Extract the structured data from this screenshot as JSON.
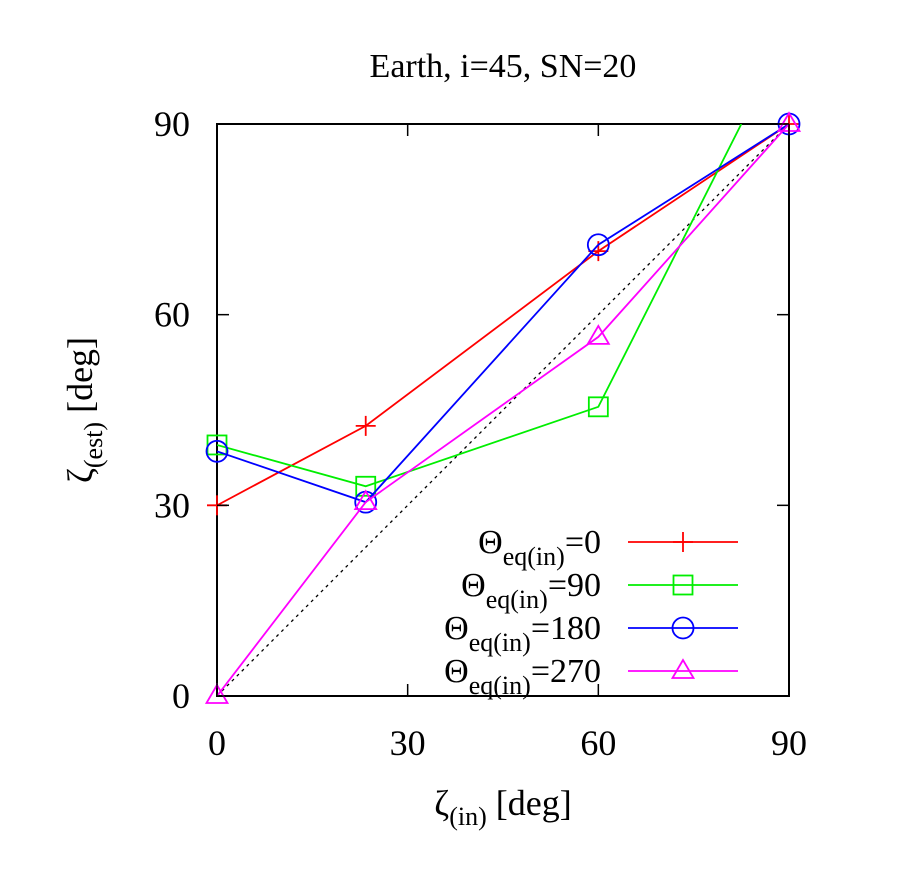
{
  "chart_data": {
    "type": "line",
    "title": "Earth, i=45, SN=20",
    "xlabel": {
      "main": "ζ",
      "sub": "(in)",
      "unit": " [deg]"
    },
    "ylabel": {
      "main": "ζ",
      "sub": "(est)",
      "unit": " [deg]"
    },
    "xlim": [
      0,
      90
    ],
    "ylim": [
      0,
      90
    ],
    "xticks": [
      0,
      30,
      60,
      90
    ],
    "yticks": [
      0,
      30,
      60,
      90
    ],
    "grid": false,
    "legend_position": "bottom-right",
    "reference_line": {
      "x": [
        0,
        90
      ],
      "y": [
        0,
        90
      ],
      "style": "dotted",
      "color": "#000000"
    },
    "series": [
      {
        "name_main": "Θ",
        "name_sub": "eq(in)",
        "name_suffix": "=0",
        "color": "#ff0000",
        "marker": "plus",
        "x": [
          0,
          23.4,
          60,
          90
        ],
        "y": [
          30,
          42.5,
          70,
          90
        ]
      },
      {
        "name_main": "Θ",
        "name_sub": "eq(in)",
        "name_suffix": "=90",
        "color": "#00ee00",
        "marker": "square",
        "x": [
          0,
          23.4,
          60,
          82.5
        ],
        "y": [
          39.5,
          33,
          45.5,
          90
        ]
      },
      {
        "name_main": "Θ",
        "name_sub": "eq(in)",
        "name_suffix": "=180",
        "color": "#0000ff",
        "marker": "circle",
        "x": [
          0,
          23.4,
          60,
          90
        ],
        "y": [
          38.5,
          30.5,
          71,
          90
        ]
      },
      {
        "name_main": "Θ",
        "name_sub": "eq(in)",
        "name_suffix": "=270",
        "color": "#ff00ff",
        "marker": "triangle",
        "x": [
          0,
          23.4,
          60,
          90
        ],
        "y": [
          0,
          30.5,
          56.5,
          90
        ]
      }
    ]
  }
}
